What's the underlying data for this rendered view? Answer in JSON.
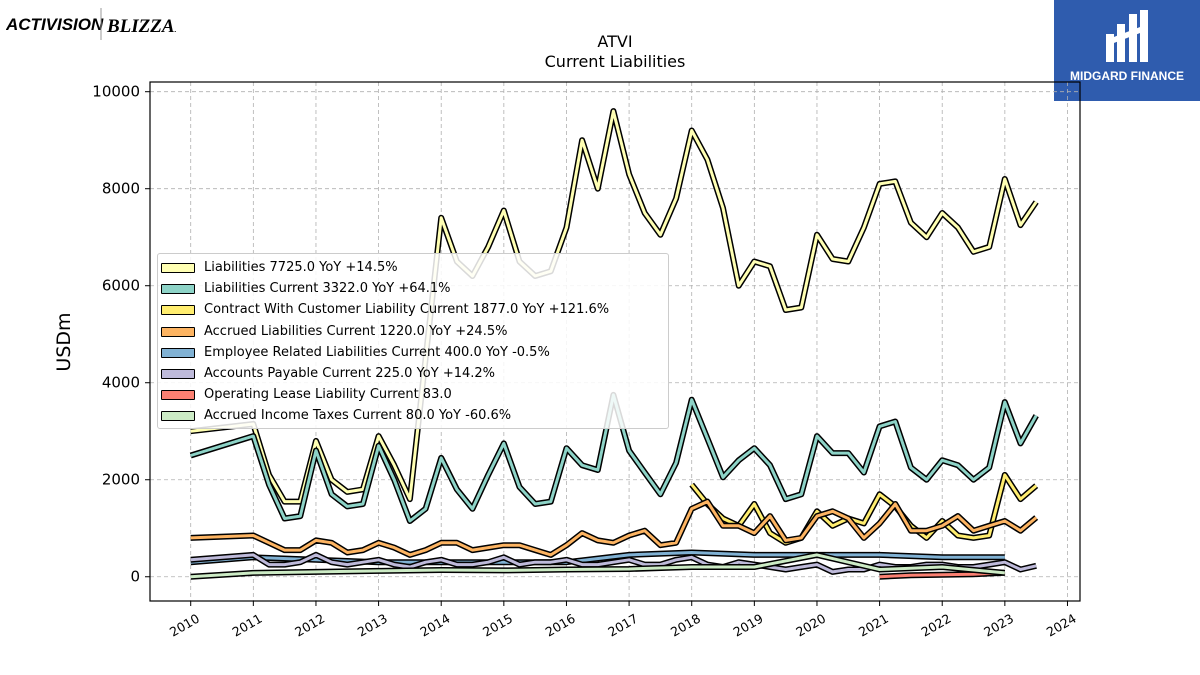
{
  "brand": {
    "left_logo_text_1": "ACTIVISION",
    "left_logo_text_2": "BLIZZARD",
    "right_logo_text": "MIDGARD FINANCE",
    "right_logo_color": "#2f5cae"
  },
  "chart_data": {
    "type": "line",
    "title": "ATVI",
    "subtitle": "Current  Liabilities",
    "xlabel": "",
    "ylabel": "USDm",
    "xlim": [
      2009.35,
      2024.2
    ],
    "ylim": [
      -500,
      10200
    ],
    "x_ticks": [
      "2010",
      "2011",
      "2012",
      "2013",
      "2014",
      "2015",
      "2016",
      "2017",
      "2018",
      "2019",
      "2020",
      "2021",
      "2022",
      "2023",
      "2024"
    ],
    "y_ticks": [
      "0",
      "2000",
      "4000",
      "6000",
      "8000",
      "10000"
    ],
    "grid": true,
    "legend_position": "center-left",
    "series": [
      {
        "name": "Liabilities  7725.0 YoY +14.5%",
        "color": "#ffffb3",
        "x": [
          2010.0,
          2011.0,
          2011.25,
          2011.5,
          2011.75,
          2012.0,
          2012.25,
          2012.5,
          2012.75,
          2013.0,
          2013.25,
          2013.5,
          2013.75,
          2014.0,
          2014.25,
          2014.5,
          2014.75,
          2015.0,
          2015.25,
          2015.5,
          2015.75,
          2016.0,
          2016.25,
          2016.5,
          2016.75,
          2017.0,
          2017.25,
          2017.5,
          2017.75,
          2018.0,
          2018.25,
          2018.5,
          2018.75,
          2019.0,
          2019.25,
          2019.5,
          2019.75,
          2020.0,
          2020.25,
          2020.5,
          2020.75,
          2021.0,
          2021.25,
          2021.5,
          2021.75,
          2022.0,
          2022.25,
          2022.5,
          2022.75,
          2023.0,
          2023.25,
          2023.5
        ],
        "values": [
          3000,
          3150,
          2100,
          1550,
          1550,
          2800,
          2000,
          1750,
          1800,
          2900,
          2300,
          1600,
          4500,
          7400,
          6500,
          6200,
          6800,
          7550,
          6500,
          6200,
          6300,
          7200,
          9000,
          8000,
          9600,
          8300,
          7500,
          7050,
          7800,
          9200,
          8600,
          7600,
          6000,
          6500,
          6400,
          5500,
          5550,
          7050,
          6550,
          6500,
          7200,
          8100,
          8150,
          7300,
          7000,
          7500,
          7200,
          6700,
          6800,
          8200,
          7250,
          7725
        ]
      },
      {
        "name": "Liabilities Current  3322.0 YoY +64.1%",
        "color": "#8dd3c7",
        "x": [
          2010.0,
          2011.0,
          2011.25,
          2011.5,
          2011.75,
          2012.0,
          2012.25,
          2012.5,
          2012.75,
          2013.0,
          2013.25,
          2013.5,
          2013.75,
          2014.0,
          2014.25,
          2014.5,
          2014.75,
          2015.0,
          2015.25,
          2015.5,
          2015.75,
          2016.0,
          2016.25,
          2016.5,
          2016.75,
          2017.0,
          2017.25,
          2017.5,
          2017.75,
          2018.0,
          2018.25,
          2018.5,
          2018.75,
          2019.0,
          2019.25,
          2019.5,
          2019.75,
          2020.0,
          2020.25,
          2020.5,
          2020.75,
          2021.0,
          2021.25,
          2021.5,
          2021.75,
          2022.0,
          2022.25,
          2022.5,
          2022.75,
          2023.0,
          2023.25,
          2023.5
        ],
        "values": [
          2500,
          2900,
          1900,
          1200,
          1250,
          2600,
          1700,
          1450,
          1500,
          2700,
          2000,
          1150,
          1400,
          2450,
          1800,
          1400,
          2100,
          2750,
          1850,
          1500,
          1550,
          2650,
          2300,
          2200,
          3750,
          2600,
          2150,
          1700,
          2350,
          3650,
          2850,
          2050,
          2400,
          2650,
          2300,
          1600,
          1700,
          2900,
          2550,
          2550,
          2150,
          3100,
          3200,
          2250,
          2000,
          2400,
          2300,
          2000,
          2250,
          3600,
          2750,
          3322
        ]
      },
      {
        "name": "Contract With Customer Liability Current  1877.0 YoY +121.6%",
        "color": "#ffed6f",
        "x": [
          2018.0,
          2018.25,
          2018.5,
          2018.75,
          2019.0,
          2019.25,
          2019.5,
          2019.75,
          2020.0,
          2020.25,
          2020.5,
          2020.75,
          2021.0,
          2021.25,
          2021.5,
          2021.75,
          2022.0,
          2022.25,
          2022.5,
          2022.75,
          2023.0,
          2023.25,
          2023.5
        ],
        "values": [
          1900,
          1500,
          1200,
          1050,
          1500,
          900,
          700,
          800,
          1350,
          1050,
          1200,
          1100,
          1700,
          1450,
          1050,
          800,
          1150,
          850,
          800,
          850,
          2100,
          1600,
          1877
        ]
      },
      {
        "name": "Accrued Liabilities Current  1220.0 YoY +24.5%",
        "color": "#fdb462",
        "x": [
          2010.0,
          2011.0,
          2011.25,
          2011.5,
          2011.75,
          2012.0,
          2012.25,
          2012.5,
          2012.75,
          2013.0,
          2013.25,
          2013.5,
          2013.75,
          2014.0,
          2014.25,
          2014.5,
          2014.75,
          2015.0,
          2015.25,
          2015.5,
          2015.75,
          2016.0,
          2016.25,
          2016.5,
          2016.75,
          2017.0,
          2017.25,
          2017.5,
          2017.75,
          2018.0,
          2018.25,
          2018.5,
          2018.75,
          2019.0,
          2019.25,
          2019.5,
          2019.75,
          2020.0,
          2020.25,
          2020.5,
          2020.75,
          2021.0,
          2021.25,
          2021.5,
          2021.75,
          2022.0,
          2022.25,
          2022.5,
          2022.75,
          2023.0,
          2023.25,
          2023.5
        ],
        "values": [
          800,
          850,
          700,
          550,
          550,
          750,
          700,
          500,
          550,
          700,
          600,
          450,
          550,
          700,
          700,
          550,
          600,
          650,
          650,
          550,
          450,
          650,
          900,
          750,
          700,
          850,
          950,
          650,
          700,
          1400,
          1550,
          1050,
          1050,
          900,
          1250,
          750,
          800,
          1250,
          1350,
          1200,
          800,
          1100,
          1500,
          950,
          950,
          1050,
          1250,
          950,
          1050,
          1150,
          950,
          1220
        ]
      },
      {
        "name": "Employee Related Liabilities Current  400.0 YoY -0.5%",
        "color": "#80b1d3",
        "x": [
          2010.0,
          2011.0,
          2012.0,
          2013.0,
          2014.0,
          2015.0,
          2016.0,
          2017.0,
          2018.0,
          2019.0,
          2020.0,
          2021.0,
          2022.0,
          2023.0
        ],
        "values": [
          300,
          400,
          350,
          300,
          300,
          300,
          300,
          450,
          500,
          450,
          450,
          450,
          400,
          400
        ]
      },
      {
        "name": "Accounts Payable Current  225.0 YoY +14.2%",
        "color": "#bebada",
        "x": [
          2010.0,
          2011.0,
          2011.25,
          2011.5,
          2011.75,
          2012.0,
          2012.25,
          2012.5,
          2012.75,
          2013.0,
          2013.25,
          2013.5,
          2013.75,
          2014.0,
          2014.25,
          2014.5,
          2014.75,
          2015.0,
          2015.25,
          2015.5,
          2015.75,
          2016.0,
          2016.25,
          2016.5,
          2016.75,
          2017.0,
          2017.25,
          2017.5,
          2017.75,
          2018.0,
          2018.25,
          2018.5,
          2018.75,
          2019.0,
          2019.25,
          2019.5,
          2019.75,
          2020.0,
          2020.25,
          2020.5,
          2020.75,
          2021.0,
          2021.25,
          2021.5,
          2021.75,
          2022.0,
          2022.25,
          2022.5,
          2022.75,
          2023.0,
          2023.25,
          2023.5
        ],
        "values": [
          350,
          450,
          250,
          250,
          300,
          450,
          300,
          250,
          300,
          350,
          250,
          200,
          300,
          350,
          250,
          250,
          300,
          400,
          250,
          300,
          300,
          350,
          250,
          250,
          300,
          350,
          250,
          250,
          350,
          400,
          250,
          200,
          300,
          250,
          200,
          150,
          200,
          250,
          100,
          150,
          150,
          250,
          200,
          200,
          250,
          250,
          200,
          200,
          250,
          300,
          150,
          225
        ]
      },
      {
        "name": "Operating Lease Liability Current  83.0",
        "color": "#fb8072",
        "x": [
          2021.0,
          2021.5,
          2022.0,
          2022.5,
          2023.0
        ],
        "values": [
          0,
          30,
          40,
          50,
          83
        ]
      },
      {
        "name": "Accrued Income Taxes Current  80.0 YoY -60.6%",
        "color": "#ccebc5",
        "x": [
          2010.0,
          2011.0,
          2012.0,
          2013.0,
          2014.0,
          2015.0,
          2016.0,
          2017.0,
          2018.0,
          2019.0,
          2020.0,
          2021.0,
          2022.0,
          2023.0
        ],
        "values": [
          0,
          80,
          100,
          120,
          140,
          130,
          150,
          160,
          200,
          200,
          450,
          150,
          200,
          80
        ]
      }
    ]
  }
}
